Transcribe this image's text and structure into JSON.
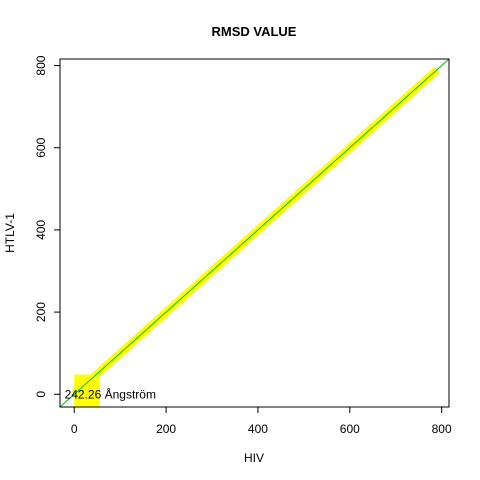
{
  "chart_data": {
    "type": "line",
    "title": "RMSD VALUE",
    "xlabel": "HIV",
    "ylabel": "HTLV-1",
    "xlim": [
      -31,
      816
    ],
    "ylim": [
      -31,
      816
    ],
    "x_ticks": [
      0,
      200,
      400,
      600,
      800
    ],
    "x_tick_labels": [
      "0",
      "200",
      "400",
      "600",
      "800"
    ],
    "y_ticks": [
      0,
      200,
      400,
      600,
      800
    ],
    "y_tick_labels": [
      "0",
      "200",
      "400",
      "600",
      "800"
    ],
    "grid": false,
    "legend": "none",
    "series": [
      {
        "style": "thick-band",
        "color": "#ffff00",
        "x": [
          0,
          30,
          100,
          200,
          300,
          400,
          500,
          600,
          700,
          790
        ],
        "y": [
          0,
          30,
          100,
          200,
          300,
          400,
          500,
          600,
          700,
          790
        ]
      },
      {
        "style": "thin-line",
        "color": "#00c000",
        "x": [
          -31,
          816
        ],
        "y": [
          -31,
          816
        ]
      }
    ],
    "highlight_block": {
      "color": "#ffff00",
      "x_range": [
        0,
        55
      ],
      "y_range": [
        -31,
        48
      ]
    },
    "annotation": {
      "text": "242.26 Ångström",
      "x": -21,
      "y": 0
    }
  }
}
